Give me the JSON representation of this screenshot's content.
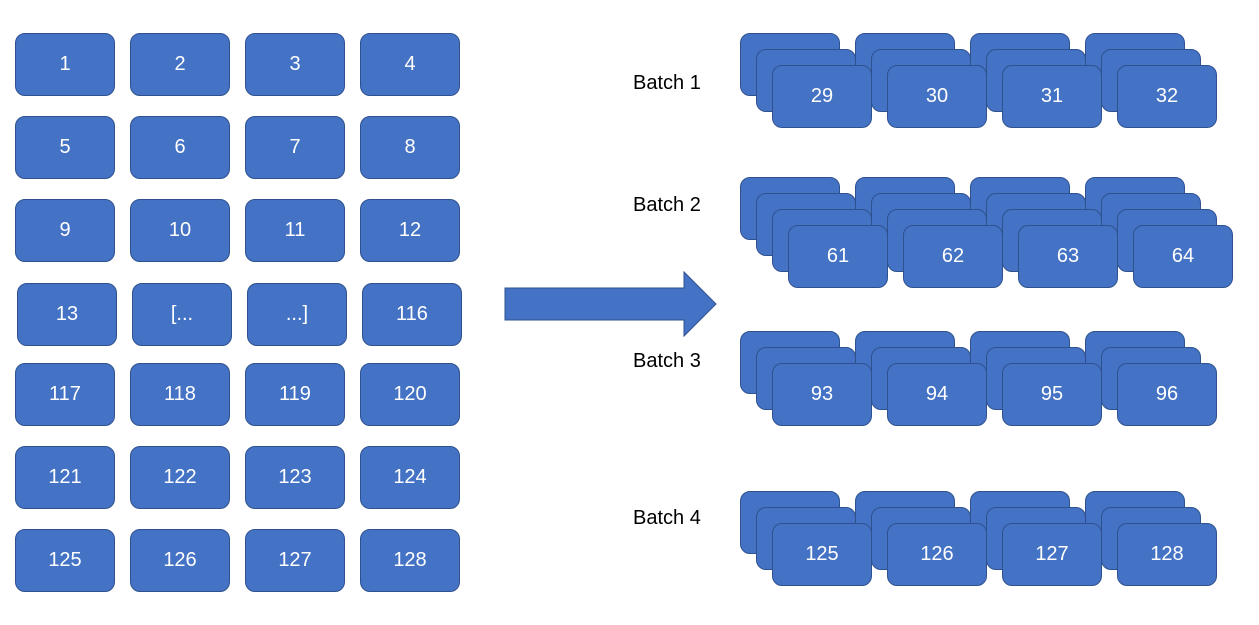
{
  "colors": {
    "tile_fill": "#4472c4",
    "tile_border": "#2f528f",
    "text": "#ffffff",
    "label": "#000000"
  },
  "grid": {
    "rows": [
      [
        "1",
        "2",
        "3",
        "4"
      ],
      [
        "5",
        "6",
        "7",
        "8"
      ],
      [
        "9",
        "10",
        "11",
        "12"
      ],
      [
        "13",
        "[...",
        "...]",
        "116"
      ],
      [
        "117",
        "118",
        "119",
        "120"
      ],
      [
        "121",
        "122",
        "123",
        "124"
      ],
      [
        "125",
        "126",
        "127",
        "128"
      ]
    ]
  },
  "arrow": {
    "icon": "right-arrow-icon"
  },
  "batches": [
    {
      "label": "Batch 1",
      "front_tiles": [
        "29",
        "30",
        "31",
        "32"
      ]
    },
    {
      "label": "Batch 2",
      "front_tiles": [
        "61",
        "62",
        "63",
        "64"
      ]
    },
    {
      "label": "Batch 3",
      "front_tiles": [
        "93",
        "94",
        "95",
        "96"
      ]
    },
    {
      "label": "Batch 4",
      "front_tiles": [
        "125",
        "126",
        "127",
        "128"
      ]
    }
  ]
}
